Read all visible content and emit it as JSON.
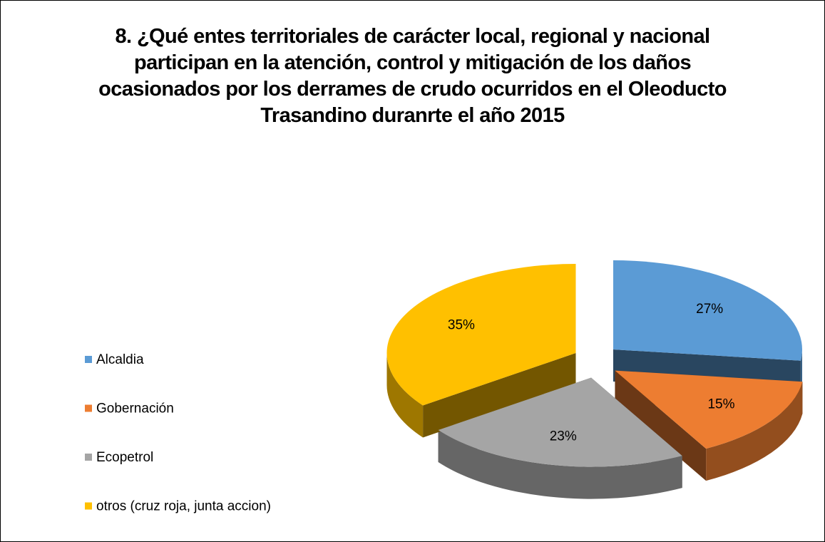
{
  "chart_data": {
    "type": "pie3d",
    "title": "8. ¿Qué entes territoriales de carácter local, regional y nacional participan en la atención, control y mitigación de los daños ocasionados por los derrames de crudo ocurridos en el Oleoducto Trasandino duranrte el año 2015",
    "categories": [
      "Alcaldia",
      "Gobernación",
      "Ecopetrol",
      "otros (cruz roja, junta accion)"
    ],
    "values": [
      27,
      15,
      23,
      35
    ],
    "value_labels": [
      "27%",
      "15%",
      "23%",
      "35%"
    ],
    "colors": [
      "#5b9bd5",
      "#ed7d31",
      "#a5a5a5",
      "#ffc000"
    ],
    "legend": "left"
  }
}
